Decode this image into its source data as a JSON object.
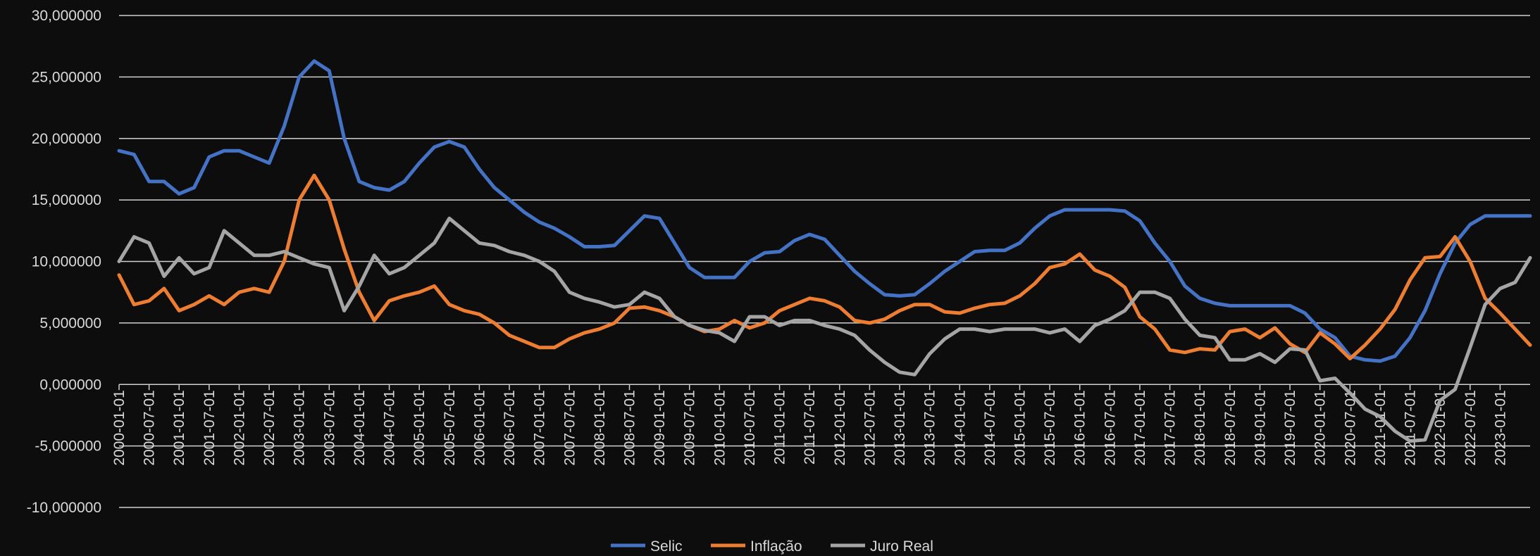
{
  "chart_data": {
    "type": "line",
    "categories": [
      "2000-01-01",
      null,
      "2000-07-01",
      null,
      "2001-01-01",
      null,
      "2001-07-01",
      null,
      "2002-01-01",
      null,
      "2002-07-01",
      null,
      "2003-01-01",
      null,
      "2003-07-01",
      null,
      "2004-01-01",
      null,
      "2004-07-01",
      null,
      "2005-01-01",
      null,
      "2005-07-01",
      null,
      "2006-01-01",
      null,
      "2006-07-01",
      null,
      "2007-01-01",
      null,
      "2007-07-01",
      null,
      "2008-01-01",
      null,
      "2008-07-01",
      null,
      "2009-01-01",
      null,
      "2009-07-01",
      null,
      "2010-01-01",
      null,
      "2010-07-01",
      null,
      "2011-01-01",
      null,
      "2011-07-01",
      null,
      "2012-01-01",
      null,
      "2012-07-01",
      null,
      "2013-01-01",
      null,
      "2013-07-01",
      null,
      "2014-01-01",
      null,
      "2014-07-01",
      null,
      "2015-01-01",
      null,
      "2015-07-01",
      null,
      "2016-01-01",
      null,
      "2016-07-01",
      null,
      "2017-01-01",
      null,
      "2017-07-01",
      null,
      "2018-01-01",
      null,
      "2018-07-01",
      null,
      "2019-01-01",
      null,
      "2019-07-01",
      null,
      "2020-01-01",
      null,
      "2020-07-01",
      null,
      "2021-01-01",
      null,
      "2021-07-01",
      null,
      "2022-01-01",
      null,
      "2022-07-01",
      null,
      "2023-01-01",
      null,
      null
    ],
    "series": [
      {
        "name": "Selic",
        "color": "#4472c4",
        "values": [
          19,
          18.7,
          16.5,
          16.5,
          15.5,
          16,
          18.5,
          19,
          19,
          18.5,
          18,
          21,
          25,
          26.3,
          25.5,
          20,
          16.5,
          16,
          15.8,
          16.5,
          18,
          19.3,
          19.75,
          19.3,
          17.5,
          16,
          15,
          14,
          13.2,
          12.7,
          12,
          11.2,
          11.2,
          11.3,
          12.5,
          13.7,
          13.5,
          11.5,
          9.5,
          8.7,
          8.7,
          8.7,
          10,
          10.7,
          10.8,
          11.7,
          12.2,
          11.8,
          10.5,
          9.2,
          8.2,
          7.3,
          7.2,
          7.3,
          8.2,
          9.2,
          10,
          10.8,
          10.9,
          10.9,
          11.5,
          12.7,
          13.7,
          14.2,
          14.2,
          14.2,
          14.2,
          14.1,
          13.3,
          11.5,
          10,
          8,
          7,
          6.6,
          6.4,
          6.4,
          6.4,
          6.4,
          6.4,
          5.8,
          4.5,
          3.8,
          2.3,
          2,
          1.9,
          2.3,
          3.8,
          6,
          9,
          11.5,
          13,
          13.7,
          13.7,
          13.7,
          13.7
        ]
      },
      {
        "name": "Inflação",
        "color": "#ed7d31",
        "values": [
          8.9,
          6.5,
          6.8,
          7.8,
          6,
          6.5,
          7.2,
          6.5,
          7.5,
          7.8,
          7.5,
          10,
          15,
          17,
          15,
          11,
          7.5,
          5.2,
          6.8,
          7.2,
          7.5,
          8,
          6.5,
          6,
          5.7,
          5,
          4,
          3.5,
          3,
          3,
          3.7,
          4.2,
          4.5,
          5,
          6.2,
          6.3,
          6,
          5.5,
          4.8,
          4.3,
          4.5,
          5.2,
          4.6,
          5,
          6,
          6.5,
          7,
          6.8,
          6.3,
          5.2,
          5,
          5.3,
          6,
          6.5,
          6.5,
          5.9,
          5.8,
          6.2,
          6.5,
          6.6,
          7.2,
          8.2,
          9.5,
          9.8,
          10.6,
          9.3,
          8.8,
          7.9,
          5.5,
          4.5,
          2.8,
          2.6,
          2.9,
          2.8,
          4.3,
          4.5,
          3.8,
          4.6,
          3.3,
          2.6,
          4.2,
          3.3,
          2.1,
          3.2,
          4.5,
          6.1,
          8.5,
          10.3,
          10.4,
          12,
          10,
          7,
          5.8,
          4.5,
          3.2
        ]
      },
      {
        "name": "Juro Real",
        "color": "#a5a5a5",
        "values": [
          10,
          12,
          11.5,
          8.8,
          10.3,
          9,
          9.5,
          12.5,
          11.5,
          10.5,
          10.5,
          10.8,
          10.3,
          9.8,
          9.5,
          6,
          8,
          10.5,
          9,
          9.5,
          10.5,
          11.5,
          13.5,
          12.5,
          11.5,
          11.3,
          10.8,
          10.5,
          10,
          9.2,
          7.5,
          7,
          6.7,
          6.3,
          6.5,
          7.5,
          7,
          5.5,
          4.8,
          4.4,
          4.2,
          3.5,
          5.5,
          5.5,
          4.8,
          5.2,
          5.2,
          4.8,
          4.5,
          4,
          2.8,
          1.8,
          1,
          0.8,
          2.5,
          3.7,
          4.5,
          4.5,
          4.3,
          4.5,
          4.5,
          4.5,
          4.2,
          4.5,
          3.5,
          4.8,
          5.3,
          6,
          7.5,
          7.5,
          7,
          5.3,
          4,
          3.8,
          2,
          2,
          2.5,
          1.8,
          2.9,
          2.8,
          0.3,
          0.5,
          -0.7,
          -2,
          -2.6,
          -3.8,
          -4.6,
          -4.5,
          -1.3,
          -0.4,
          3,
          6.5,
          7.8,
          8.3,
          10.3
        ]
      }
    ],
    "ylim": [
      -10,
      30
    ],
    "yticks": [
      {
        "value": -10,
        "label": "-10,000000"
      },
      {
        "value": -5,
        "label": "-5,000000"
      },
      {
        "value": 0,
        "label": "0,000000"
      },
      {
        "value": 5,
        "label": "5,000000"
      },
      {
        "value": 10,
        "label": "10,000000"
      },
      {
        "value": 15,
        "label": "15,000000"
      },
      {
        "value": 20,
        "label": "20,000000"
      },
      {
        "value": 25,
        "label": "25,000000"
      },
      {
        "value": 30,
        "label": "30,000000"
      }
    ],
    "grid": true,
    "legend": "bottom"
  }
}
